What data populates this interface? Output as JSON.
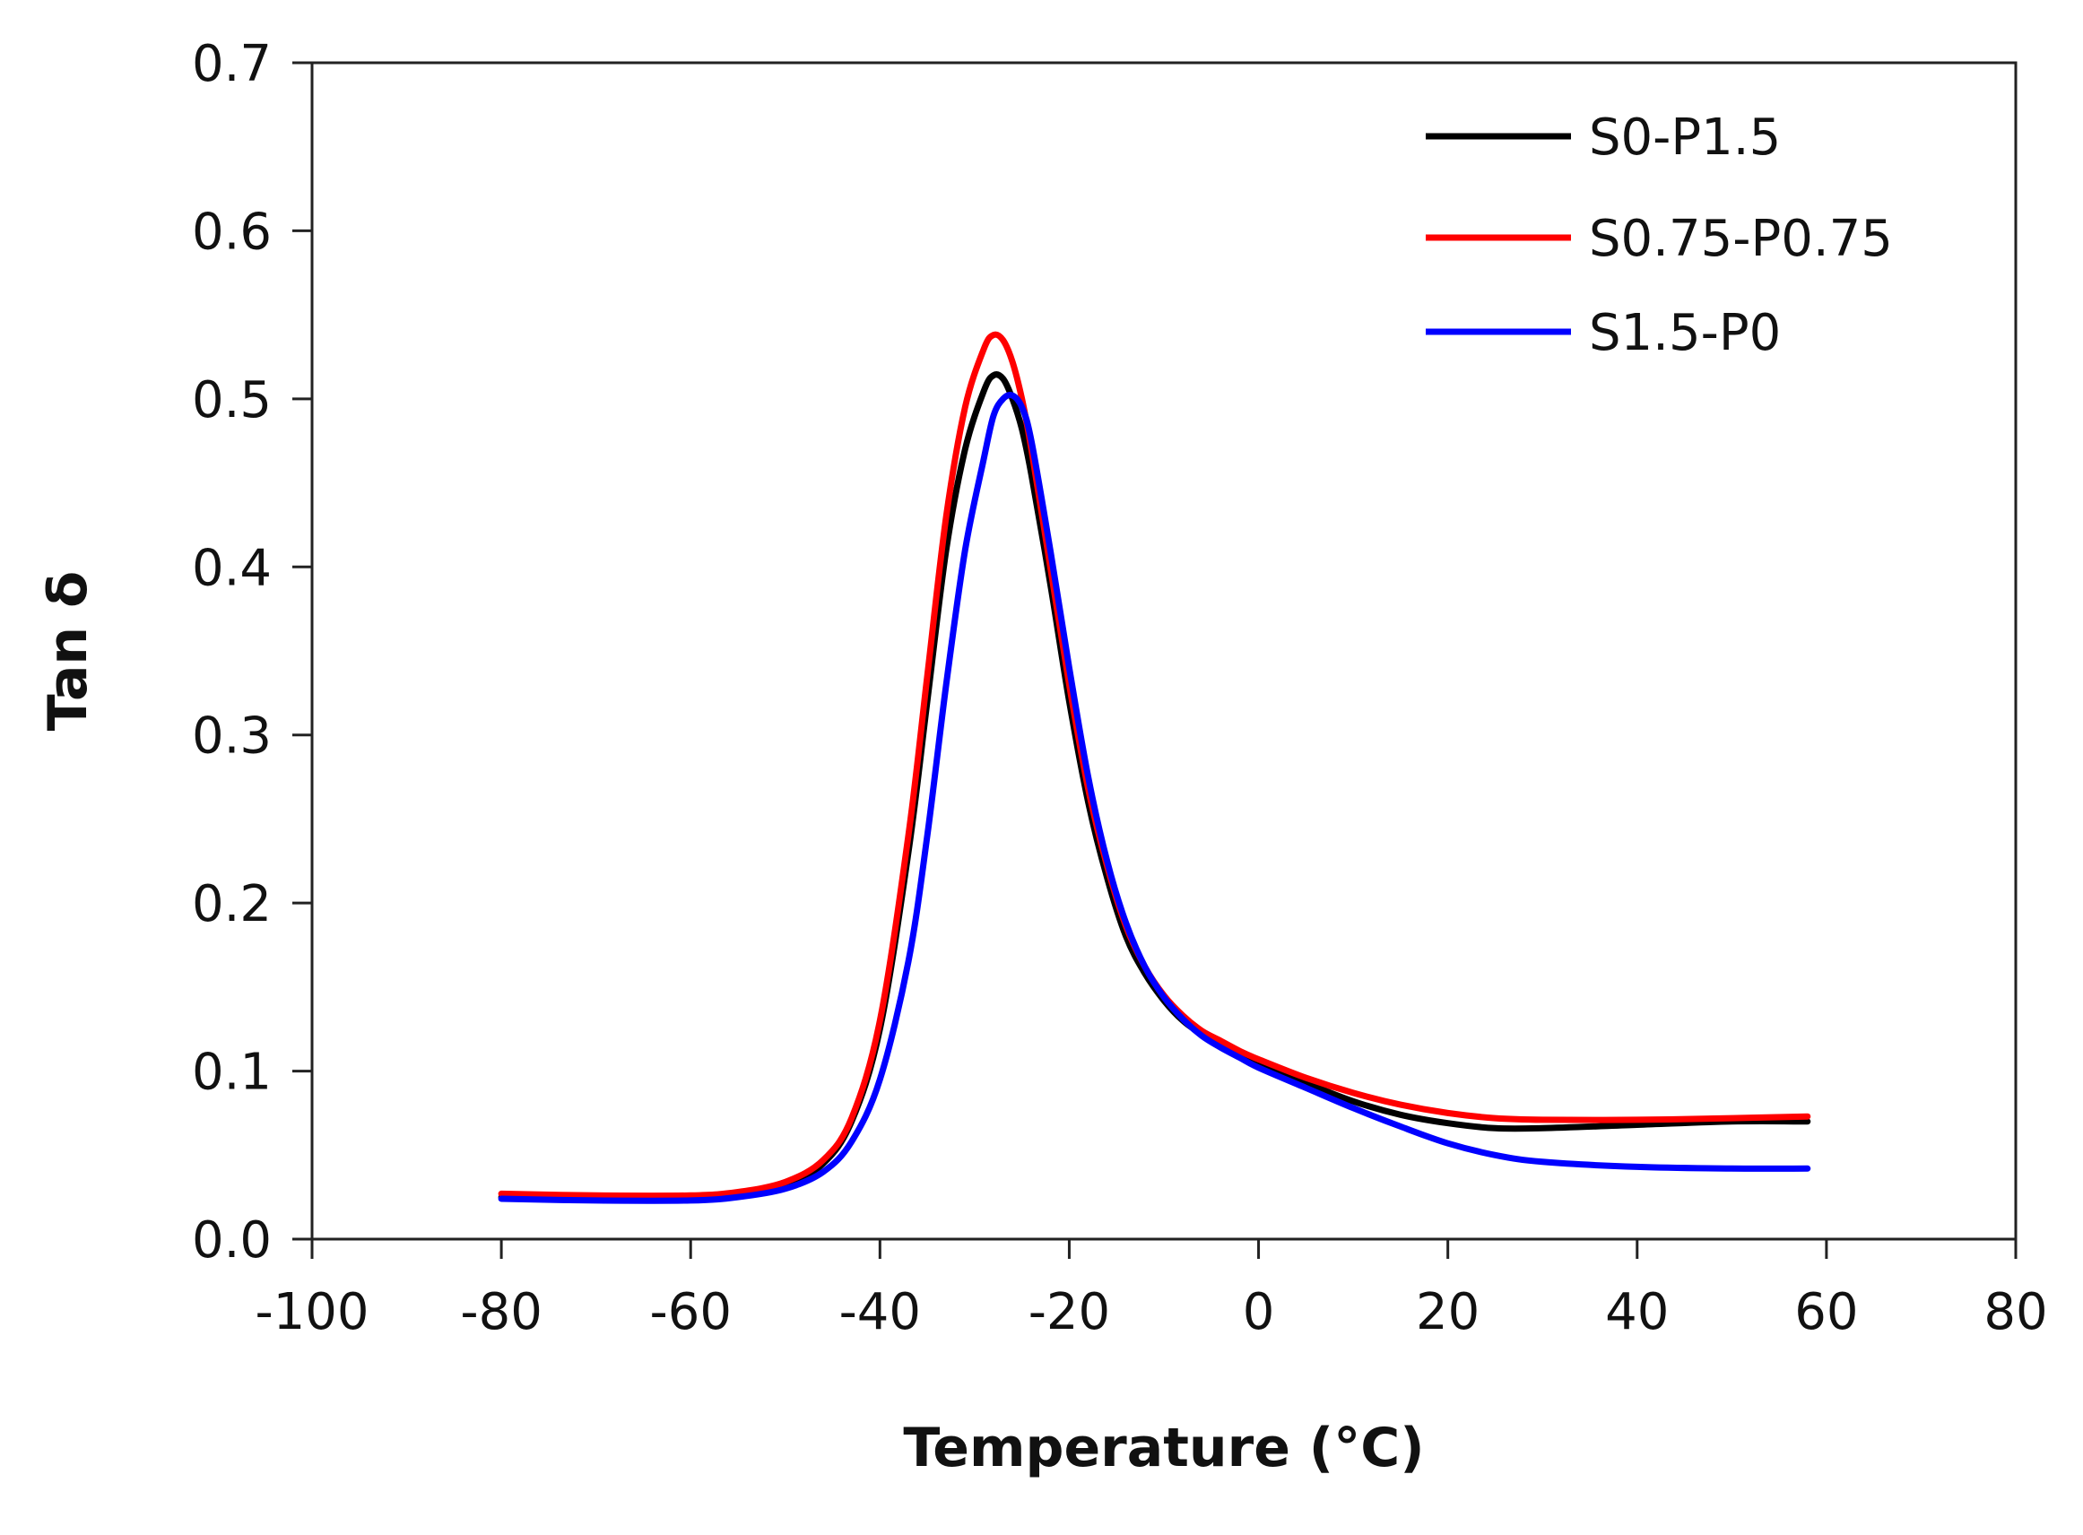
{
  "chart_data": {
    "type": "line",
    "xlabel": "Temperature (°C)",
    "ylabel": "Tan δ",
    "xlim": [
      -100,
      80
    ],
    "ylim": [
      0.0,
      0.7
    ],
    "xticks": [
      -100,
      -80,
      -60,
      -40,
      -20,
      0,
      20,
      40,
      60,
      80
    ],
    "xtick_labels": [
      "-100",
      "-80",
      "-60",
      "-40",
      "-20",
      "0",
      "20",
      "40",
      "60",
      "80"
    ],
    "yticks": [
      0.0,
      0.1,
      0.2,
      0.3,
      0.4,
      0.5,
      0.6,
      0.7
    ],
    "ytick_labels": [
      "0.0",
      "0.1",
      "0.2",
      "0.3",
      "0.4",
      "0.5",
      "0.6",
      "0.7"
    ],
    "grid": false,
    "legend_position": "top-right",
    "series": [
      {
        "name": "S0-P1.5",
        "color": "#000000",
        "x": [
          -80,
          -70,
          -60,
          -55,
          -50,
          -46,
          -43,
          -40,
          -37,
          -35,
          -33,
          -31,
          -29,
          -28,
          -27,
          -26,
          -25,
          -24,
          -22,
          -20,
          -18,
          -16,
          -14,
          -12,
          -10,
          -8,
          -6,
          -4,
          -2,
          0,
          5,
          10,
          15,
          20,
          25,
          30,
          40,
          50,
          58
        ],
        "y": [
          0.025,
          0.024,
          0.024,
          0.026,
          0.032,
          0.045,
          0.07,
          0.125,
          0.23,
          0.32,
          0.41,
          0.47,
          0.505,
          0.514,
          0.512,
          0.5,
          0.482,
          0.455,
          0.39,
          0.32,
          0.26,
          0.215,
          0.18,
          0.158,
          0.142,
          0.13,
          0.122,
          0.116,
          0.11,
          0.105,
          0.093,
          0.082,
          0.074,
          0.069,
          0.066,
          0.066,
          0.068,
          0.07,
          0.07
        ]
      },
      {
        "name": "S0.75-P0.75",
        "color": "#ff0000",
        "x": [
          -80,
          -70,
          -60,
          -55,
          -50,
          -46,
          -43,
          -40,
          -37,
          -35,
          -33,
          -31,
          -29,
          -28,
          -27,
          -26,
          -25,
          -24,
          -22,
          -20,
          -18,
          -16,
          -14,
          -12,
          -10,
          -8,
          -6,
          -4,
          -2,
          0,
          5,
          10,
          15,
          20,
          25,
          30,
          40,
          50,
          58
        ],
        "y": [
          0.027,
          0.026,
          0.026,
          0.028,
          0.034,
          0.047,
          0.072,
          0.13,
          0.24,
          0.335,
          0.43,
          0.495,
          0.53,
          0.538,
          0.535,
          0.522,
          0.5,
          0.47,
          0.4,
          0.33,
          0.268,
          0.222,
          0.186,
          0.162,
          0.145,
          0.133,
          0.124,
          0.118,
          0.112,
          0.107,
          0.096,
          0.087,
          0.08,
          0.075,
          0.072,
          0.071,
          0.071,
          0.072,
          0.073
        ]
      },
      {
        "name": "S1.5-P0",
        "color": "#0000ff",
        "x": [
          -80,
          -70,
          -60,
          -55,
          -50,
          -46,
          -43,
          -40,
          -37,
          -35,
          -33,
          -31,
          -29,
          -28,
          -27,
          -26,
          -25,
          -24,
          -22,
          -20,
          -18,
          -16,
          -14,
          -12,
          -10,
          -8,
          -6,
          -4,
          -2,
          0,
          5,
          10,
          15,
          20,
          25,
          30,
          40,
          50,
          58
        ],
        "y": [
          0.024,
          0.023,
          0.023,
          0.025,
          0.03,
          0.04,
          0.058,
          0.095,
          0.165,
          0.24,
          0.33,
          0.41,
          0.465,
          0.49,
          0.5,
          0.502,
          0.495,
          0.475,
          0.41,
          0.34,
          0.275,
          0.225,
          0.188,
          0.162,
          0.144,
          0.131,
          0.121,
          0.114,
          0.108,
          0.102,
          0.09,
          0.078,
          0.067,
          0.057,
          0.05,
          0.046,
          0.043,
          0.042,
          0.042
        ]
      }
    ]
  }
}
